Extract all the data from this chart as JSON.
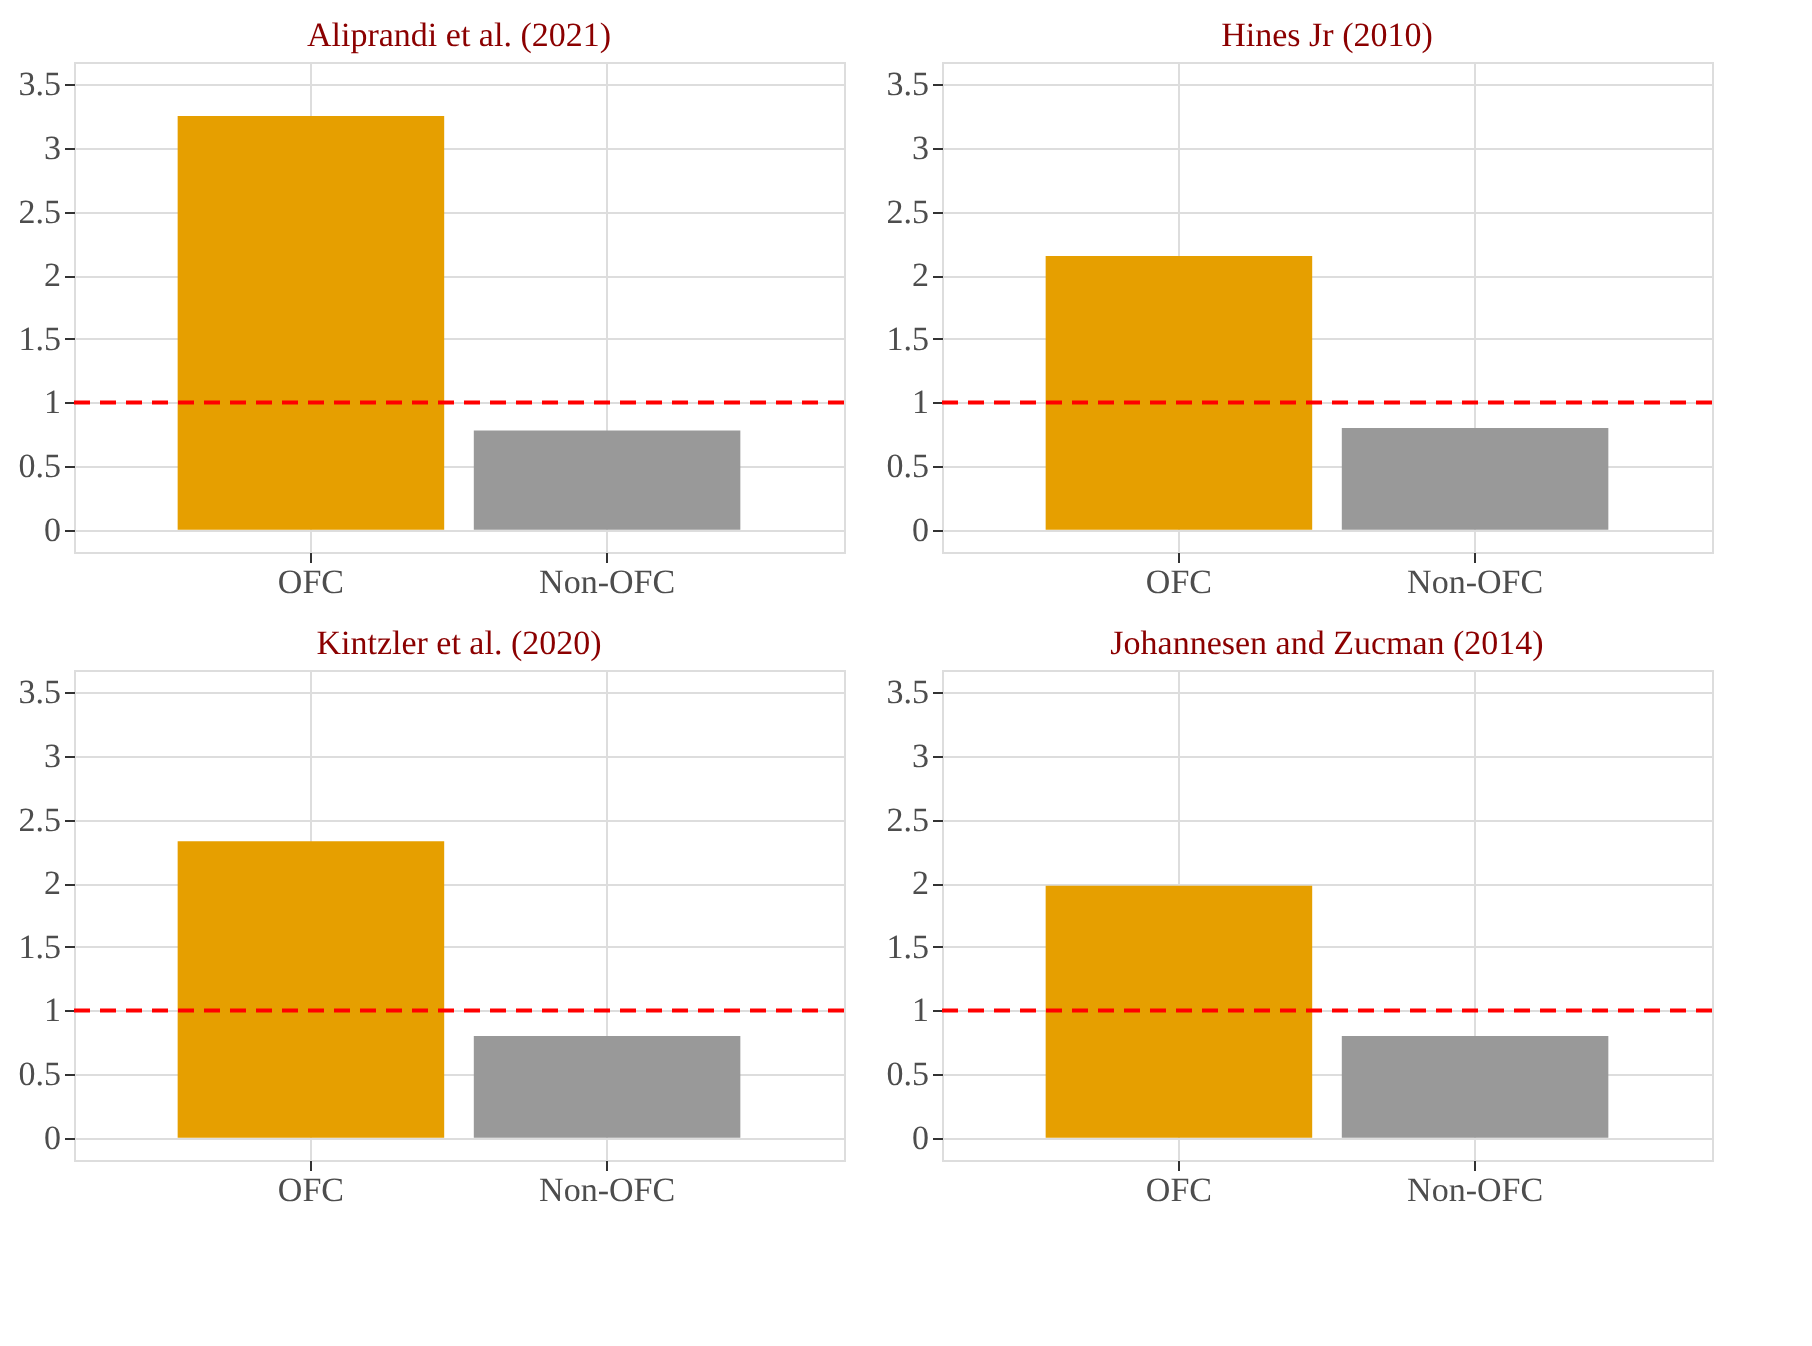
{
  "chart_data": [
    {
      "type": "bar",
      "title": "Aliprandi et al. (2021)",
      "categories": [
        "OFC",
        "Non-OFC"
      ],
      "values": [
        3.25,
        0.78
      ],
      "colors": [
        "#e69f00",
        "#999999"
      ],
      "ylim": [
        -0.175,
        3.675
      ],
      "yticks": [
        0,
        0.5,
        1,
        1.5,
        2,
        2.5,
        3,
        3.5
      ],
      "grid": true,
      "ref_lines": [
        {
          "axis": "y",
          "value": 1,
          "color": "#ff0000",
          "line_style": "dashed"
        }
      ]
    },
    {
      "type": "bar",
      "title": "Hines Jr (2010)",
      "categories": [
        "OFC",
        "Non-OFC"
      ],
      "values": [
        2.15,
        0.8
      ],
      "colors": [
        "#e69f00",
        "#999999"
      ],
      "ylim": [
        -0.175,
        3.675
      ],
      "yticks": [
        0,
        0.5,
        1,
        1.5,
        2,
        2.5,
        3,
        3.5
      ],
      "grid": true,
      "ref_lines": [
        {
          "axis": "y",
          "value": 1,
          "color": "#ff0000",
          "line_style": "dashed"
        }
      ]
    },
    {
      "type": "bar",
      "title": "Kintzler et al. (2020)",
      "categories": [
        "OFC",
        "Non-OFC"
      ],
      "values": [
        2.33,
        0.8
      ],
      "colors": [
        "#e69f00",
        "#999999"
      ],
      "ylim": [
        -0.175,
        3.675
      ],
      "yticks": [
        0,
        0.5,
        1,
        1.5,
        2,
        2.5,
        3,
        3.5
      ],
      "grid": true,
      "ref_lines": [
        {
          "axis": "y",
          "value": 1,
          "color": "#ff0000",
          "line_style": "dashed"
        }
      ]
    },
    {
      "type": "bar",
      "title": "Johannesen and Zucman (2014)",
      "categories": [
        "OFC",
        "Non-OFC"
      ],
      "values": [
        1.98,
        0.8
      ],
      "colors": [
        "#e69f00",
        "#999999"
      ],
      "ylim": [
        -0.175,
        3.675
      ],
      "yticks": [
        0,
        0.5,
        1,
        1.5,
        2,
        2.5,
        3,
        3.5
      ],
      "grid": true,
      "ref_lines": [
        {
          "axis": "y",
          "value": 1,
          "color": "#ff0000",
          "line_style": "dashed"
        }
      ]
    }
  ]
}
